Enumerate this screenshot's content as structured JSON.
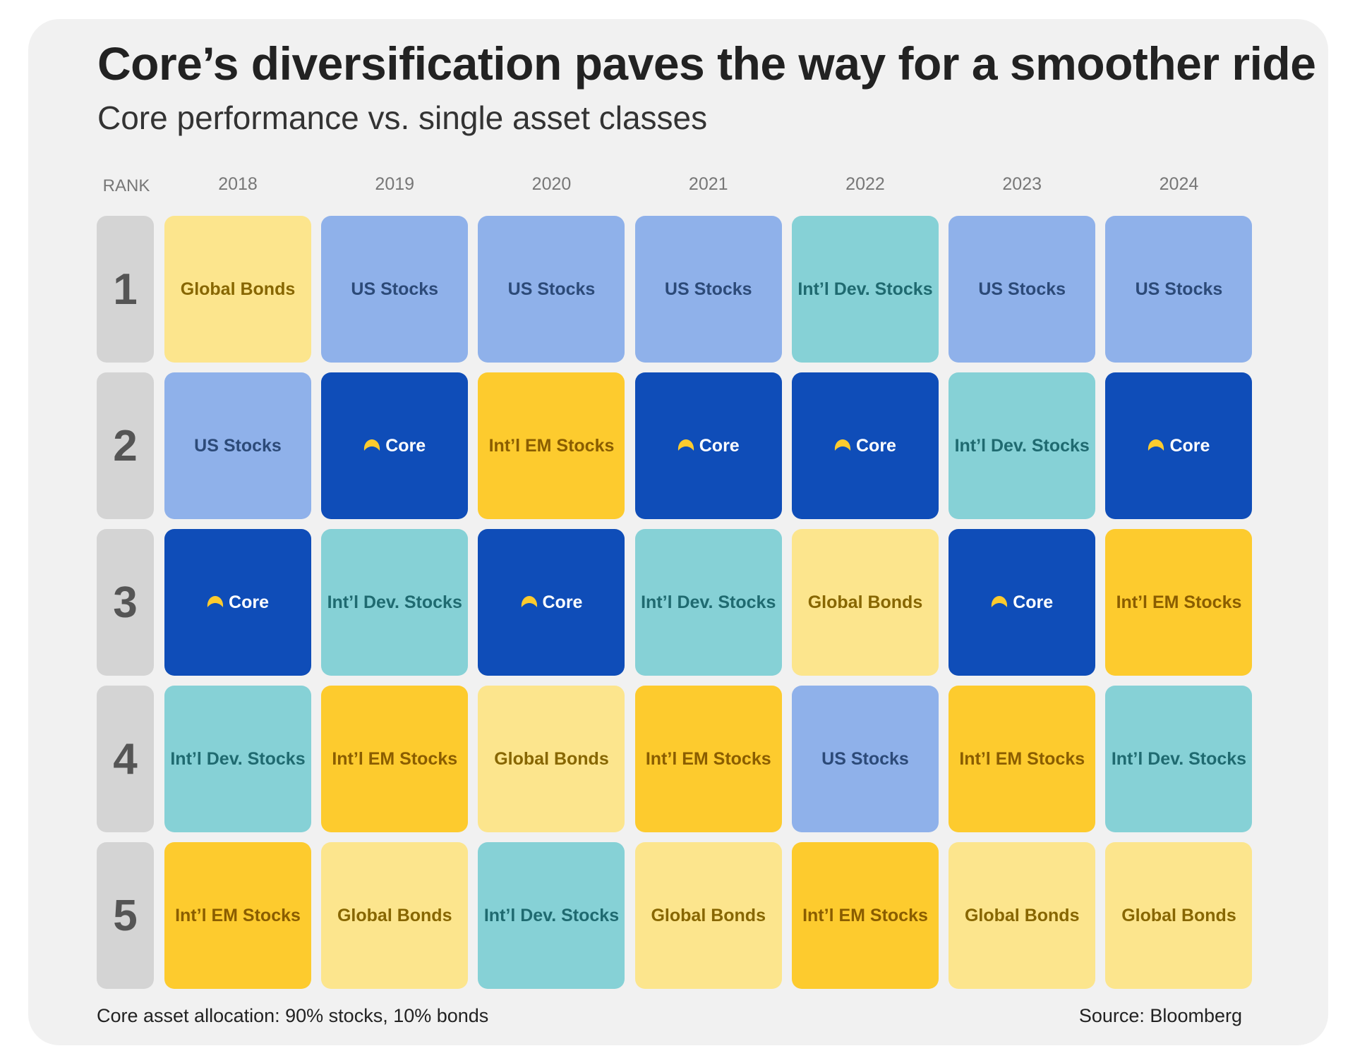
{
  "chart_data": {
    "type": "table",
    "title": "Core’s diversification paves the way for a smoother ride",
    "subtitle": "Core performance vs. single asset classes",
    "rank_label": "RANK",
    "years": [
      "2018",
      "2019",
      "2020",
      "2021",
      "2022",
      "2023",
      "2024"
    ],
    "ranks": [
      "1",
      "2",
      "3",
      "4",
      "5"
    ],
    "rankings": {
      "2018": [
        "Global Bonds",
        "US Stocks",
        "Core",
        "Int’l Dev. Stocks",
        "Int’l EM Stocks"
      ],
      "2019": [
        "US Stocks",
        "Core",
        "Int’l Dev. Stocks",
        "Int’l EM Stocks",
        "Global Bonds"
      ],
      "2020": [
        "US Stocks",
        "Int’l EM Stocks",
        "Core",
        "Global Bonds",
        "Int’l Dev. Stocks"
      ],
      "2021": [
        "US Stocks",
        "Core",
        "Int’l Dev. Stocks",
        "Int’l EM Stocks",
        "Global Bonds"
      ],
      "2022": [
        "Int’l Dev. Stocks",
        "Core",
        "Global Bonds",
        "US Stocks",
        "Int’l EM Stocks"
      ],
      "2023": [
        "US Stocks",
        "Int’l Dev. Stocks",
        "Core",
        "Int’l EM Stocks",
        "Global Bonds"
      ],
      "2024": [
        "US Stocks",
        "Core",
        "Int’l EM Stocks",
        "Int’l Dev. Stocks",
        "Global Bonds"
      ]
    },
    "colors": {
      "US Stocks": {
        "bg": "#8fb1ea",
        "text": "#2c4a78"
      },
      "Core": {
        "bg": "#0f4db8",
        "text": "#ffffff",
        "icon": "#fdcb2e"
      },
      "Int’l Dev. Stocks": {
        "bg": "#86d1d6",
        "text": "#1f6a70"
      },
      "Int’l EM Stocks": {
        "bg": "#fdcb2e",
        "text": "#8a5d00"
      },
      "Global Bonds": {
        "bg": "#fce58d",
        "text": "#876600"
      }
    },
    "core_icon": "half-moon-logo-icon"
  },
  "footer": {
    "note": "Core asset allocation: 90% stocks, 10% bonds",
    "source": "Source: Bloomberg"
  }
}
